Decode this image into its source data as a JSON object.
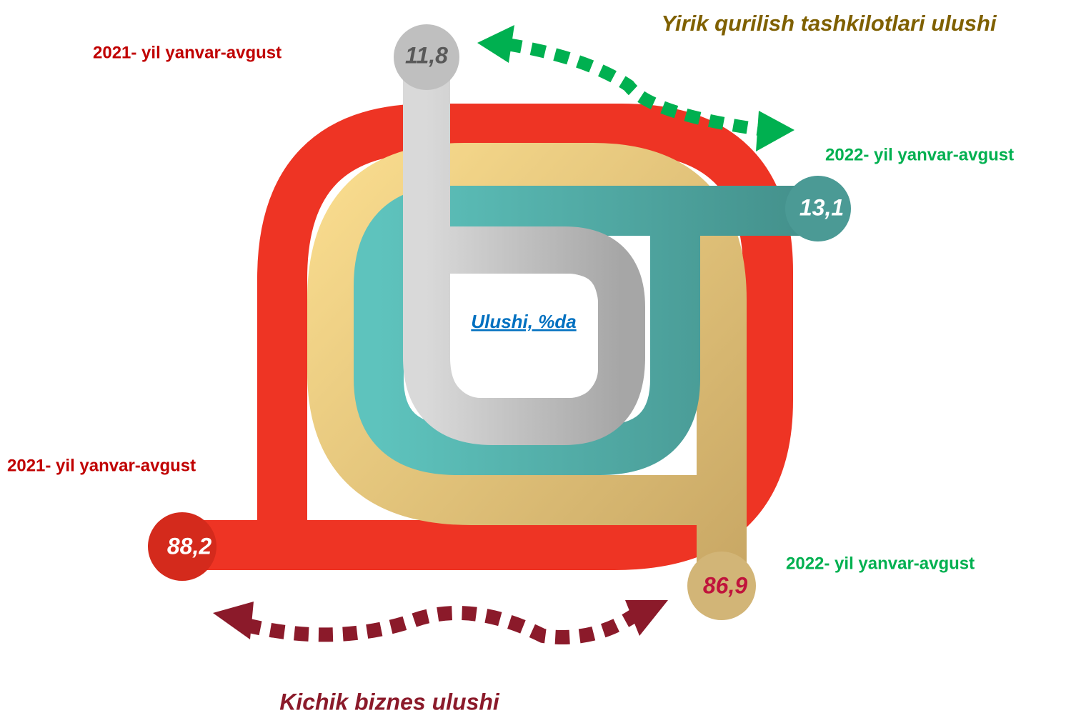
{
  "header": {
    "title": "Yirik qurilish tashkilotlari ulushi"
  },
  "center_label": "Ulushi, %da",
  "footer": {
    "title": "Kichik biznes ulushi"
  },
  "large": {
    "label_2021": "2021- yil yanvar-avgust",
    "value_2021": "11,8",
    "label_2022": "2022- yil yanvar-avgust",
    "value_2022": "13,1"
  },
  "small": {
    "label_2021": "2021- yil yanvar-avgust",
    "value_2021": "88,2",
    "label_2022": "2022- yil yanvar-avgust",
    "value_2022": "86,9"
  }
}
